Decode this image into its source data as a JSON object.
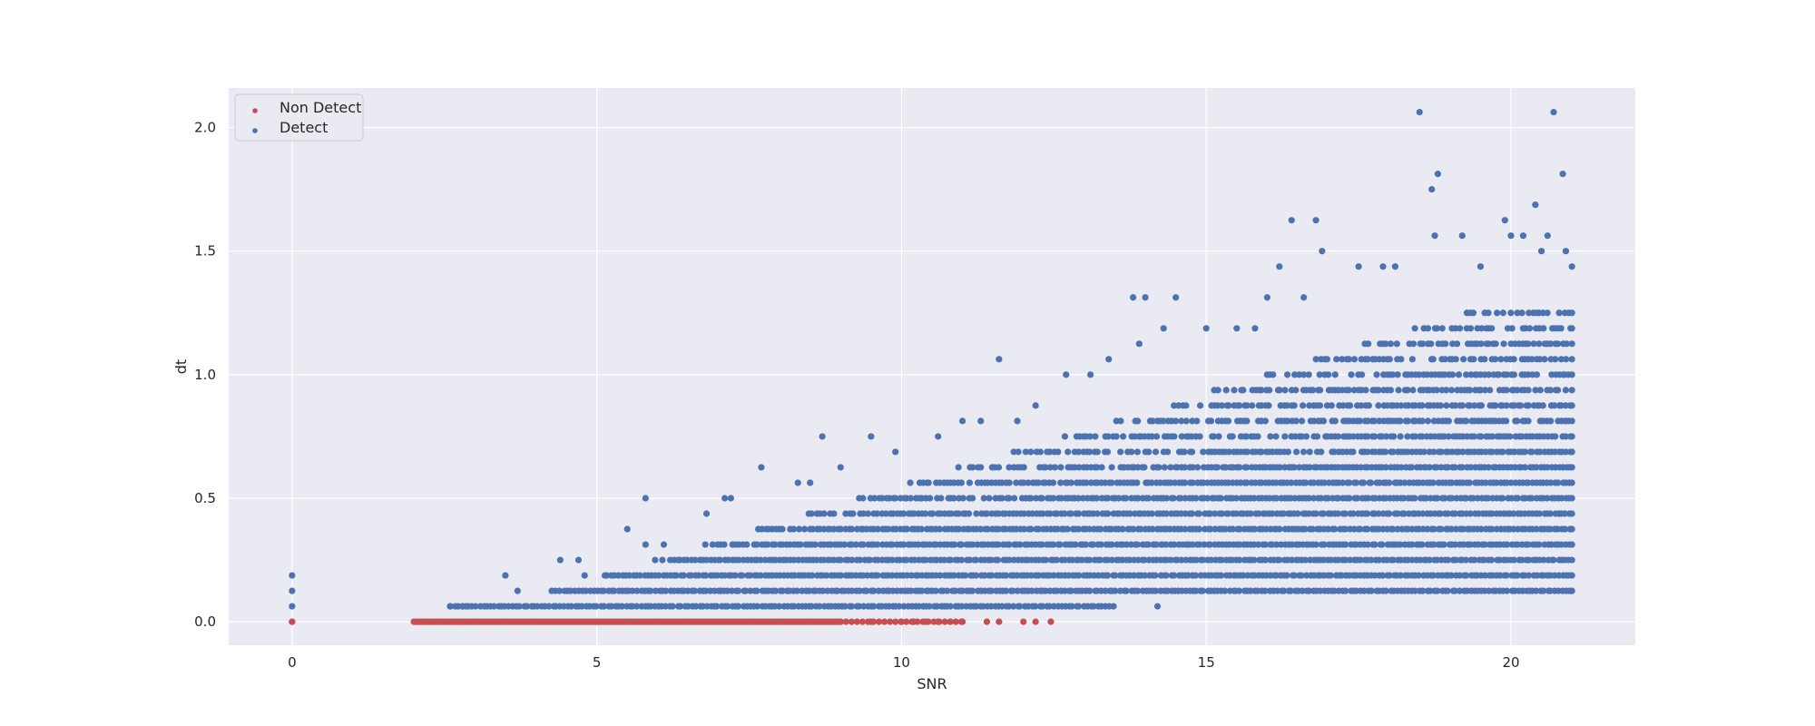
{
  "chart_data": {
    "type": "scatter",
    "title": "",
    "xlabel": "SNR",
    "ylabel": "dt",
    "xlim": [
      -1.04,
      22.04
    ],
    "ylim": [
      -0.095,
      2.16
    ],
    "xticks": [
      0,
      5,
      10,
      15,
      20
    ],
    "yticks": [
      0.0,
      0.5,
      1.0,
      1.5,
      2.0
    ],
    "xtick_labels": [
      "0",
      "5",
      "10",
      "15",
      "20"
    ],
    "ytick_labels": [
      "0.0",
      "0.5",
      "1.0",
      "1.5",
      "2.0"
    ],
    "grid": true,
    "legend_position": "top-left",
    "background": "#eaeaf2",
    "grid_color": "#ffffff",
    "dt_step": 0.0625,
    "series": [
      {
        "name": "Non Detect",
        "color": "#c44e52",
        "points": [
          [
            0,
            0
          ],
          [
            0,
            0
          ],
          [
            2.0,
            0
          ],
          [
            2.2,
            0
          ],
          [
            2.4,
            0
          ],
          [
            2.6,
            0
          ],
          [
            2.8,
            0
          ],
          [
            3.0,
            0
          ],
          [
            3.5,
            0
          ],
          [
            4.0,
            0
          ],
          [
            4.5,
            0
          ],
          [
            5.0,
            0
          ],
          [
            5.5,
            0
          ],
          [
            6.0,
            0
          ],
          [
            6.5,
            0
          ],
          [
            7.0,
            0
          ],
          [
            7.5,
            0
          ],
          [
            8.0,
            0
          ],
          [
            8.5,
            0
          ],
          [
            9.0,
            0
          ],
          [
            9.5,
            0
          ],
          [
            10.0,
            0
          ],
          [
            10.2,
            0
          ],
          [
            10.4,
            0
          ],
          [
            10.6,
            0
          ],
          [
            10.8,
            0
          ],
          [
            11.0,
            0
          ],
          [
            11.4,
            0
          ],
          [
            11.6,
            0
          ],
          [
            12.0,
            0
          ],
          [
            12.2,
            0
          ],
          [
            12.45,
            0
          ]
        ],
        "segment": {
          "x0": 2.0,
          "x1": 9.0,
          "y": 0
        }
      },
      {
        "name": "Detect",
        "color": "#4c72b0",
        "outliers": [
          [
            0,
            0.0625
          ],
          [
            0,
            0.125
          ],
          [
            0,
            0.1875
          ],
          [
            2.6,
            0.0625
          ],
          [
            2.8,
            0.0625
          ],
          [
            3.5,
            0.1875
          ],
          [
            3.7,
            0.125
          ],
          [
            4.4,
            0.25
          ],
          [
            4.7,
            0.25
          ],
          [
            4.8,
            0.1875
          ],
          [
            5.5,
            0.375
          ],
          [
            5.8,
            0.5
          ],
          [
            5.8,
            0.3125
          ],
          [
            6.1,
            0.3125
          ],
          [
            7.1,
            0.5
          ],
          [
            7.2,
            0.5
          ],
          [
            6.8,
            0.4375
          ],
          [
            7.7,
            0.625
          ],
          [
            8.7,
            0.75
          ],
          [
            8.3,
            0.5625
          ],
          [
            8.5,
            0.5625
          ],
          [
            9.0,
            0.625
          ],
          [
            9.5,
            0.75
          ],
          [
            9.9,
            0.6875
          ],
          [
            10.6,
            0.75
          ],
          [
            11.0,
            0.8125
          ],
          [
            11.3,
            0.8125
          ],
          [
            11.6,
            1.0625
          ],
          [
            11.9,
            0.8125
          ],
          [
            12.2,
            0.875
          ],
          [
            12.7,
            1.0
          ],
          [
            13.1,
            1.0
          ],
          [
            13.4,
            1.0625
          ],
          [
            13.8,
            1.3125
          ],
          [
            14.0,
            1.3125
          ],
          [
            13.9,
            1.125
          ],
          [
            14.5,
            1.3125
          ],
          [
            14.3,
            1.1875
          ],
          [
            14.2,
            0.0625
          ],
          [
            15.0,
            1.1875
          ],
          [
            15.5,
            1.1875
          ],
          [
            15.8,
            1.1875
          ],
          [
            16.0,
            1.3125
          ],
          [
            16.2,
            1.4375
          ],
          [
            16.4,
            1.625
          ],
          [
            16.8,
            1.625
          ],
          [
            16.9,
            1.5
          ],
          [
            16.6,
            1.3125
          ],
          [
            17.5,
            1.4375
          ],
          [
            17.9,
            1.4375
          ],
          [
            18.1,
            1.4375
          ],
          [
            18.5,
            2.0625
          ],
          [
            18.7,
            1.75
          ],
          [
            18.8,
            1.8125
          ],
          [
            18.75,
            1.5625
          ],
          [
            19.2,
            1.5625
          ],
          [
            19.5,
            1.4375
          ],
          [
            19.9,
            1.625
          ],
          [
            20.0,
            1.5625
          ],
          [
            20.2,
            1.5625
          ],
          [
            20.4,
            1.6875
          ],
          [
            20.5,
            1.5
          ],
          [
            20.6,
            1.5625
          ],
          [
            20.7,
            2.0625
          ],
          [
            20.85,
            1.8125
          ],
          [
            20.9,
            1.5
          ],
          [
            21.0,
            1.4375
          ]
        ]
      }
    ]
  }
}
